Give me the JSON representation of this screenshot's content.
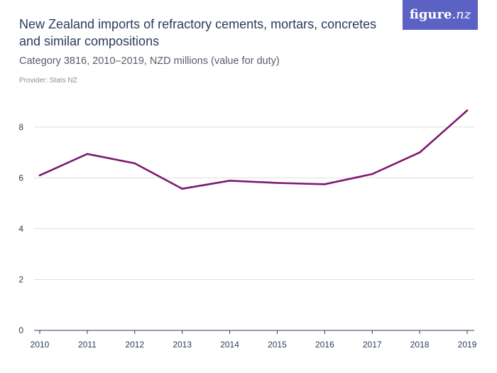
{
  "brand": {
    "name": "figure",
    "tld": ".nz"
  },
  "chart_data": {
    "type": "line",
    "title": "New Zealand imports of refractory cements, mortars, concretes and similar compositions",
    "subtitle": "Category 3816, 2010–2019, NZD millions (value for duty)",
    "provider": "Provider: Stats NZ",
    "xlabel": "",
    "ylabel": "",
    "x": [
      "2010",
      "2011",
      "2012",
      "2013",
      "2014",
      "2015",
      "2016",
      "2017",
      "2018",
      "2019"
    ],
    "series": [
      {
        "values": [
          6.1,
          6.94,
          6.57,
          5.57,
          5.89,
          5.8,
          5.75,
          6.15,
          7.0,
          8.65
        ]
      }
    ],
    "ylim": [
      0,
      9
    ],
    "yticks": [
      "0",
      "2",
      "4",
      "6",
      "8"
    ],
    "grid": "horizontal",
    "legend": "none",
    "colors": {
      "line": "#7b1a6e",
      "grid": "#dddddd",
      "axis": "#2b3a5c"
    }
  }
}
